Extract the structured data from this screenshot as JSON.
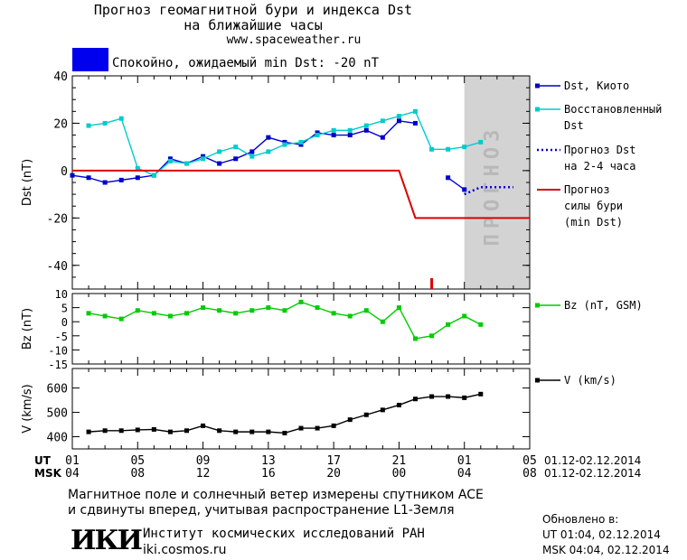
{
  "header": {
    "title_line1": "Прогноз геомагнитной бури и индекса Dst",
    "title_line2": "на ближайшие часы",
    "website": "www.spaceweather.ru",
    "status_text": "Спокойно, ожидаемый min Dst: -20 nT",
    "status_color": "#0000ee"
  },
  "forecast_label": "ПРОГНОЗ",
  "time_axis": {
    "ut_label": "UT",
    "msk_label": "MSK",
    "ut_ticks": [
      "01",
      "05",
      "09",
      "13",
      "17",
      "21",
      "01",
      "05"
    ],
    "msk_ticks": [
      "04",
      "08",
      "12",
      "16",
      "20",
      "00",
      "04",
      "08"
    ],
    "ut_range": "01.12-02.12.2014",
    "msk_range": "01.12-02.12.2014",
    "x_range_hours": [
      0,
      28
    ],
    "forecast_start_hour": 24
  },
  "chart_data": [
    {
      "type": "line",
      "ylabel": "Dst (nT)",
      "ylim": [
        -50,
        40
      ],
      "yticks": [
        -40,
        -20,
        0,
        20,
        40
      ],
      "series": [
        {
          "name": "Dst, Киото",
          "color": "#0000cc",
          "marker": "square",
          "x": [
            0,
            1,
            2,
            3,
            4,
            5,
            6,
            7,
            8,
            9,
            10,
            11,
            12,
            13,
            14,
            15,
            16,
            17,
            18,
            19,
            20,
            21,
            22,
            23,
            24
          ],
          "y": [
            -2,
            -3,
            -5,
            -4,
            -3,
            -2,
            5,
            3,
            6,
            3,
            5,
            8,
            14,
            12,
            11,
            16,
            15,
            15,
            17,
            14,
            21,
            20,
            null,
            -3,
            -8
          ]
        },
        {
          "name": "Восстановленный Dst",
          "color": "#00cccc",
          "marker": "square",
          "x": [
            1,
            2,
            3,
            4,
            5,
            6,
            7,
            8,
            9,
            10,
            11,
            12,
            13,
            14,
            15,
            16,
            17,
            18,
            19,
            20,
            21,
            22,
            23,
            24,
            25
          ],
          "y": [
            19,
            20,
            22,
            1,
            -2,
            4,
            3,
            5,
            8,
            10,
            6,
            8,
            11,
            12,
            15,
            17,
            17,
            19,
            21,
            23,
            25,
            9,
            9,
            10,
            12
          ]
        },
        {
          "name": "Прогноз Dst на 2-4 часа",
          "color": "#0000cc",
          "style": "dotted",
          "x": [
            24,
            25,
            26,
            27
          ],
          "y": [
            -10,
            -7,
            -7,
            -7
          ]
        },
        {
          "name": "Прогноз силы бури (min Dst)",
          "color": "#dd0000",
          "style": "step",
          "x": [
            0,
            20,
            21,
            22,
            28
          ],
          "y": [
            0,
            0,
            -20,
            -20,
            -20
          ]
        }
      ],
      "legend": [
        "Dst, Киото",
        "Восстановленный",
        "Dst",
        "Прогноз Dst",
        "на 2-4 часа",
        "Прогноз",
        "силы бури",
        "(min Dst)"
      ]
    },
    {
      "type": "line",
      "ylabel": "Bz (nT)",
      "ylim": [
        -15,
        10
      ],
      "yticks": [
        10,
        5,
        0,
        -5,
        -10,
        -15
      ],
      "series": [
        {
          "name": "Bz (nT, GSM)",
          "color": "#00cc00",
          "marker": "square",
          "x": [
            1,
            2,
            3,
            4,
            5,
            6,
            7,
            8,
            9,
            10,
            11,
            12,
            13,
            14,
            15,
            16,
            17,
            18,
            19,
            20,
            21,
            22,
            23,
            24,
            25
          ],
          "y": [
            3,
            2,
            1,
            4,
            3,
            2,
            3,
            5,
            4,
            3,
            4,
            5,
            4,
            7,
            5,
            3,
            2,
            4,
            0,
            5,
            -6,
            -5,
            -1,
            2,
            -1
          ]
        }
      ]
    },
    {
      "type": "line",
      "ylabel": "V (km/s)",
      "ylim": [
        350,
        680
      ],
      "yticks": [
        400,
        500,
        600
      ],
      "series": [
        {
          "name": "V (km/s)",
          "color": "#000000",
          "marker": "square",
          "x": [
            1,
            2,
            3,
            4,
            5,
            6,
            7,
            8,
            9,
            10,
            11,
            12,
            13,
            14,
            15,
            16,
            17,
            18,
            19,
            20,
            21,
            22,
            23,
            24,
            25
          ],
          "y": [
            420,
            425,
            425,
            428,
            430,
            420,
            425,
            445,
            425,
            420,
            420,
            420,
            415,
            435,
            435,
            445,
            470,
            490,
            510,
            530,
            555,
            565,
            565,
            560,
            575
          ]
        }
      ]
    }
  ],
  "footer": {
    "measure_line1": "Магнитное поле и солнечный ветер измерены спутником ACE",
    "measure_line2": "и сдвинуты вперед, учитывая распространение L1-Земля",
    "logo_text": "ИКИ",
    "institute": "Институт космических исследований РАН",
    "institute_url": "iki.cosmos.ru",
    "updated_label": "Обновлено в:",
    "updated_ut": "UT  01:04, 02.12.2014",
    "updated_msk": "MSK 04:04, 02.12.2014"
  }
}
